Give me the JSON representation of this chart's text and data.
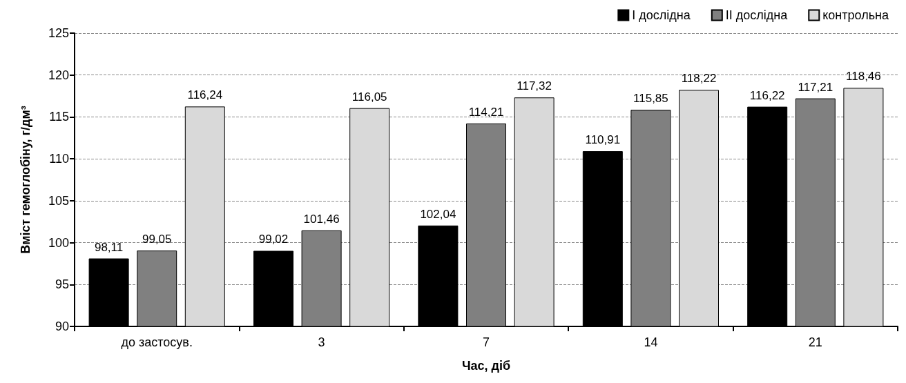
{
  "chart_data": {
    "type": "bar",
    "xlabel": "Час, діб",
    "ylabel": "Вміст гемоглобіну, г/дм³",
    "categories": [
      "до застосув.",
      "3",
      "7",
      "14",
      "21"
    ],
    "series": [
      {
        "name": "I дослідна",
        "color": "#000000",
        "values": [
          98.11,
          99.02,
          102.04,
          110.91,
          116.22
        ],
        "value_labels": [
          "98,11",
          "99,02",
          "102,04",
          "110,91",
          "116,22"
        ]
      },
      {
        "name": "II дослідна",
        "color": "#808080",
        "values": [
          99.05,
          101.46,
          114.21,
          115.85,
          117.21
        ],
        "value_labels": [
          "99,05",
          "101,46",
          "114,21",
          "115,85",
          "117,21"
        ]
      },
      {
        "name": "контрольна",
        "color": "#d9d9d9",
        "values": [
          116.24,
          116.05,
          117.32,
          118.22,
          118.46
        ],
        "value_labels": [
          "116,24",
          "116,05",
          "117,32",
          "118,22",
          "118,46"
        ]
      }
    ],
    "ylim": [
      90,
      125
    ],
    "yticks": [
      90,
      95,
      100,
      105,
      110,
      115,
      120,
      125
    ],
    "grid": "y",
    "legend": "top right"
  }
}
